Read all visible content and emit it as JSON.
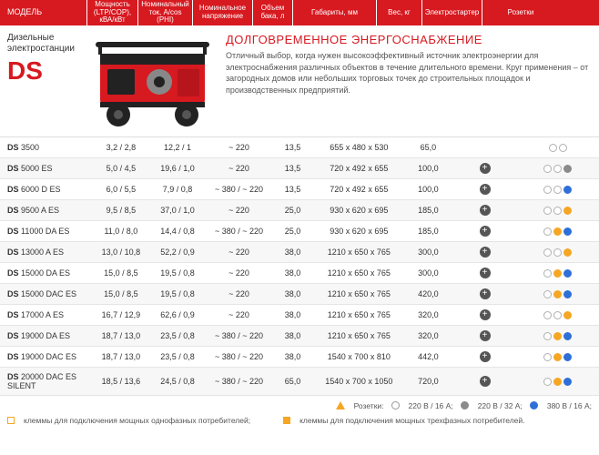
{
  "headers": {
    "model": "МОДЕЛЬ",
    "power": "Мощность (LTP/COP), кВА/кВт",
    "current": "Номинальный ток, А/cos (PHI)",
    "voltage": "Номинальное напряжение",
    "tank": "Объем бака, л",
    "dims": "Габариты, мм",
    "weight": "Вес, кг",
    "starter": "Электростартер",
    "sockets": "Розетки"
  },
  "intro": {
    "subtitle": "Дизельные электростанции",
    "brand": "DS",
    "title": "ДОЛГОВРЕМЕННОЕ ЭНЕРГОСНАБЖЕНИЕ",
    "desc": "Отличный выбор, когда нужен высокоэффективный источник электроэнергии для электроснабжения различных объектов в течение длительного времени. Круг применения – от загородных домов или небольших торговых точек до строительных площадок и производственных предприятий."
  },
  "colors": {
    "accent": "#d71920",
    "orange": "#f5a623",
    "grey": "#8a8a8a",
    "blue": "#2e6fd8",
    "empty": "#ffffff",
    "border": "#b0b0b0"
  },
  "rows": [
    {
      "model_pfx": "DS",
      "model_sfx": " 3500",
      "power": "3,2 / 2,8",
      "current": "12,2 / 1",
      "voltage": "~ 220",
      "tank": "13,5",
      "dims": "655 x 480 x 530",
      "weight": "65,0",
      "starter": "",
      "sockets": [
        "e",
        "e"
      ]
    },
    {
      "model_pfx": "DS",
      "model_sfx": " 5000 ES",
      "power": "5,0 / 4,5",
      "current": "19,6 / 1,0",
      "voltage": "~ 220",
      "tank": "13,5",
      "dims": "720 x 492 x 655",
      "weight": "100,0",
      "starter": "+",
      "sockets": [
        "e",
        "e",
        "g"
      ]
    },
    {
      "model_pfx": "DS",
      "model_sfx": " 6000 D ES",
      "power": "6,0 / 5,5",
      "current": "7,9 / 0,8",
      "voltage": "~ 380 / ~ 220",
      "tank": "13,5",
      "dims": "720 x 492 x 655",
      "weight": "100,0",
      "starter": "+",
      "sockets": [
        "e",
        "e",
        "b"
      ]
    },
    {
      "model_pfx": "DS",
      "model_sfx": " 9500 A ES",
      "power": "9,5 / 8,5",
      "current": "37,0 / 1,0",
      "voltage": "~ 220",
      "tank": "25,0",
      "dims": "930 x 620 x 695",
      "weight": "185,0",
      "starter": "+",
      "sockets": [
        "e",
        "e",
        "o"
      ]
    },
    {
      "model_pfx": "DS",
      "model_sfx": " 11000 DA ES",
      "power": "11,0 / 8,0",
      "current": "14,4 / 0,8",
      "voltage": "~ 380 / ~ 220",
      "tank": "25,0",
      "dims": "930 x 620 x 695",
      "weight": "185,0",
      "starter": "+",
      "sockets": [
        "e",
        "o",
        "b"
      ]
    },
    {
      "model_pfx": "DS",
      "model_sfx": " 13000 A ES",
      "power": "13,0 / 10,8",
      "current": "52,2 / 0,9",
      "voltage": "~ 220",
      "tank": "38,0",
      "dims": "1210 x 650 x 765",
      "weight": "300,0",
      "starter": "+",
      "sockets": [
        "e",
        "e",
        "o"
      ]
    },
    {
      "model_pfx": "DS",
      "model_sfx": " 15000 DA ES",
      "power": "15,0 / 8,5",
      "current": "19,5 / 0,8",
      "voltage": "~ 220",
      "tank": "38,0",
      "dims": "1210 x 650 x 765",
      "weight": "300,0",
      "starter": "+",
      "sockets": [
        "e",
        "o",
        "b"
      ]
    },
    {
      "model_pfx": "DS",
      "model_sfx": " 15000 DAC ES",
      "power": "15,0 / 8,5",
      "current": "19,5 / 0,8",
      "voltage": "~ 220",
      "tank": "38,0",
      "dims": "1210 x 650 x 765",
      "weight": "420,0",
      "starter": "+",
      "sockets": [
        "e",
        "o",
        "b"
      ]
    },
    {
      "model_pfx": "DS",
      "model_sfx": " 17000 A ES",
      "power": "16,7 / 12,9",
      "current": "62,6 / 0,9",
      "voltage": "~ 220",
      "tank": "38,0",
      "dims": "1210 x 650 x 765",
      "weight": "320,0",
      "starter": "+",
      "sockets": [
        "e",
        "e",
        "o"
      ]
    },
    {
      "model_pfx": "DS",
      "model_sfx": " 19000 DA ES",
      "power": "18,7 / 13,0",
      "current": "23,5 / 0,8",
      "voltage": "~ 380 / ~ 220",
      "tank": "38,0",
      "dims": "1210 x 650 x 765",
      "weight": "320,0",
      "starter": "+",
      "sockets": [
        "e",
        "o",
        "b"
      ]
    },
    {
      "model_pfx": "DS",
      "model_sfx": " 19000 DAC ES",
      "power": "18,7 / 13,0",
      "current": "23,5 / 0,8",
      "voltage": "~ 380 / ~ 220",
      "tank": "38,0",
      "dims": "1540 x 700 x 810",
      "weight": "442,0",
      "starter": "+",
      "sockets": [
        "e",
        "o",
        "b"
      ]
    },
    {
      "model_pfx": "DS",
      "model_sfx": " 20000 DAC ES SILENT",
      "power": "18,5 / 13,6",
      "current": "24,5 / 0,8",
      "voltage": "~ 380 / ~ 220",
      "tank": "65,0",
      "dims": "1540 x 700 x 1050",
      "weight": "720,0",
      "starter": "+",
      "sockets": [
        "e",
        "o",
        "b"
      ]
    }
  ],
  "legend": {
    "single_phase": "клеммы для подключения мощных однофазных потребителей;",
    "three_phase": "клеммы для подключения мощных трехфазных потребителей.",
    "sockets_label": "Розетки:",
    "s220_16": "220 В / 16 А;",
    "s220_32": "220 В / 32 А;",
    "s380_16": "380 В / 16 А;"
  }
}
